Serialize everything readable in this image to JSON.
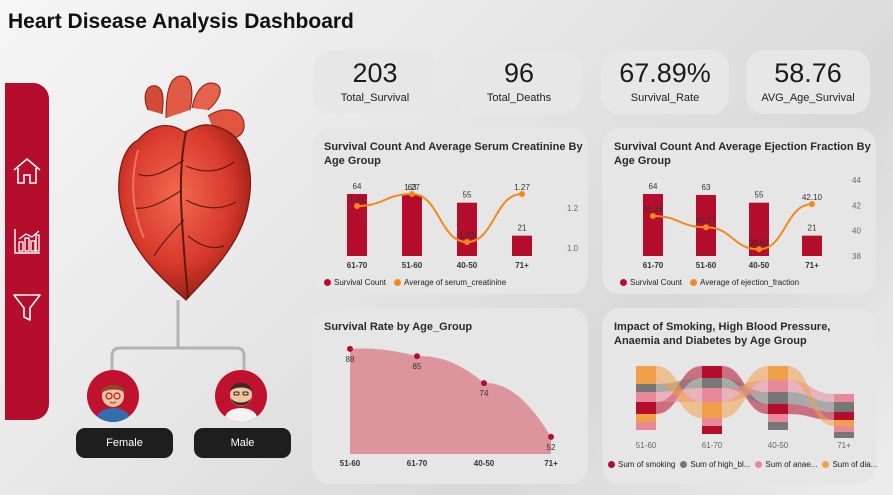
{
  "dashboard": {
    "title": "Heart Disease Analysis Dashboard"
  },
  "sidebar": {
    "icons": [
      "home-icon",
      "chart-icon",
      "filter-icon"
    ]
  },
  "gender": {
    "female_label": "Female",
    "male_label": "Male"
  },
  "kpis": [
    {
      "value": "203",
      "label": "Total_Survival"
    },
    {
      "value": "96",
      "label": "Total_Deaths"
    },
    {
      "value": "67.89%",
      "label": "Survival_Rate"
    },
    {
      "value": "58.76",
      "label": "AVG_Age_Survival"
    }
  ],
  "colors": {
    "accent": "#b50d2c",
    "orange": "#f08a1e",
    "area": "#d9868f"
  },
  "chart_data": [
    {
      "type": "bar",
      "title": "Survival Count And Average Serum Creatinine By Age Group",
      "categories": [
        "61-70",
        "51-60",
        "40-50",
        "71+"
      ],
      "series": [
        {
          "name": "Survival Count",
          "kind": "bar",
          "values": [
            64,
            63,
            55,
            21
          ],
          "labels": [
            "64",
            "63",
            "55",
            "21"
          ]
        },
        {
          "name": "Average of serum_creatinine",
          "kind": "line",
          "values": [
            1.21,
            1.27,
            1.03,
            1.27
          ],
          "labels": [
            "1.21",
            "1.27",
            "1.03",
            "1.27"
          ]
        }
      ],
      "y2_ticks": [
        "1.2",
        "1.0"
      ],
      "y2lim": [
        0.96,
        1.32
      ]
    },
    {
      "type": "bar",
      "title": "Survival Count And Average Ejection Fraction By Age Group",
      "categories": [
        "61-70",
        "51-60",
        "40-50",
        "71+"
      ],
      "series": [
        {
          "name": "Survival Count",
          "kind": "bar",
          "values": [
            64,
            63,
            55,
            21
          ],
          "labels": [
            "64",
            "63",
            "55",
            "21"
          ]
        },
        {
          "name": "Average of ejection_fraction",
          "kind": "line",
          "values": [
            41.16,
            40.27,
            38.53,
            42.1
          ],
          "labels": [
            "41.16",
            "40.27",
            "38.53",
            "42.10"
          ]
        }
      ],
      "y2_ticks": [
        "44",
        "42",
        "40",
        "38"
      ],
      "y2lim": [
        38,
        44
      ]
    },
    {
      "type": "area",
      "title": "Survival Rate by Age_Group",
      "categories": [
        "51-60",
        "61-70",
        "40-50",
        "71+"
      ],
      "values": [
        88,
        85,
        74,
        52
      ],
      "labels": [
        "88",
        "85",
        "74",
        "52"
      ],
      "ylim": [
        45,
        90
      ]
    },
    {
      "type": "ribbon",
      "title": "Impact of Smoking, High Blood Pressure, Anaemia and Diabetes by Age Group",
      "categories": [
        "51-60",
        "61-70",
        "40-50",
        "71+"
      ],
      "series": [
        {
          "name": "Sum of smoking",
          "color": "#b50d2c"
        },
        {
          "name": "Sum of high_bl...",
          "color": "#777777"
        },
        {
          "name": "Sum of anae...",
          "color": "#e8899a"
        },
        {
          "name": "Sum of dia...",
          "color": "#f0a04a"
        }
      ]
    }
  ]
}
